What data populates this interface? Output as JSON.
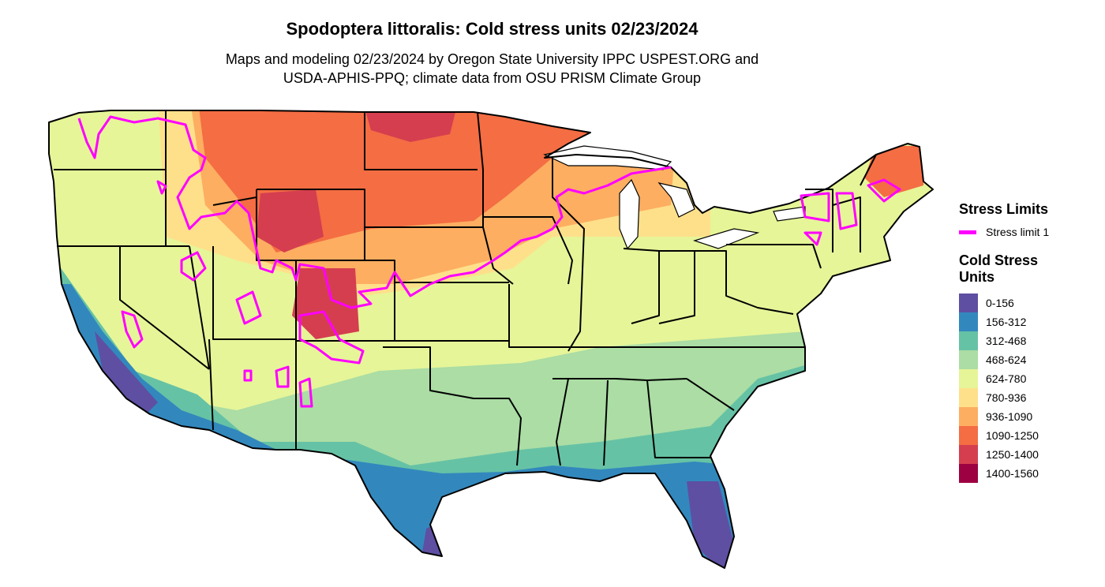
{
  "title": "Spodoptera littoralis: Cold stress units 02/23/2024",
  "subtitle": {
    "line1": "Maps and modeling 02/23/2024 by Oregon State University IPPC USPEST.ORG and",
    "line2": "USDA-APHIS-PPQ; climate data from OSU PRISM Climate Group"
  },
  "legend": {
    "stress_title": "Stress Limits",
    "stress_label": "Stress limit 1",
    "stress_color": "#ff00ff",
    "cold_title_line1": "Cold Stress",
    "cold_title_line2": "Units",
    "bins": [
      {
        "label": "0-156",
        "color": "#5e4fa2"
      },
      {
        "label": "156-312",
        "color": "#3288bd"
      },
      {
        "label": "312-468",
        "color": "#66c2a5"
      },
      {
        "label": "468-624",
        "color": "#abdda4"
      },
      {
        "label": "624-780",
        "color": "#e6f598"
      },
      {
        "label": "780-936",
        "color": "#fee08b"
      },
      {
        "label": "936-1090",
        "color": "#fdae61"
      },
      {
        "label": "1090-1250",
        "color": "#f46d43"
      },
      {
        "label": "1250-1400",
        "color": "#d53e4f"
      },
      {
        "label": "1400-1560",
        "color": "#9e0142"
      }
    ]
  }
}
